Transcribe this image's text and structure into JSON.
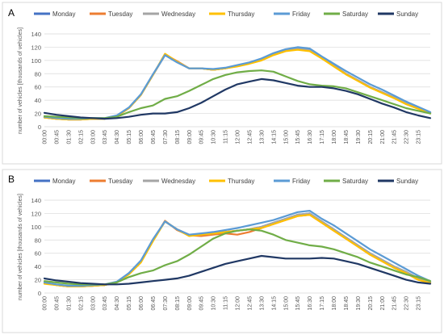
{
  "chart_data": [
    {
      "panel_label": "A",
      "type": "line",
      "title": "",
      "xlabel": "",
      "ylabel": "number of vehicles [thousands of vehicles]",
      "ylim": [
        0,
        140
      ],
      "yticks": [
        0,
        20,
        40,
        60,
        80,
        100,
        120,
        140
      ],
      "x_tick_labels": [
        "00:00",
        "00:45",
        "01:30",
        "02:15",
        "03:00",
        "03:45",
        "04:30",
        "05:15",
        "06:00",
        "06:45",
        "07:30",
        "08:15",
        "09:00",
        "09:45",
        "10:30",
        "11:15",
        "12:00",
        "12:45",
        "13:30",
        "14:15",
        "15:00",
        "15:45",
        "16:30",
        "17:15",
        "18:00",
        "18:45",
        "19:30",
        "20:15",
        "21:00",
        "21:45",
        "22:30",
        "23:15"
      ],
      "grid": true,
      "legend": "top",
      "x": [
        "00:00",
        "00:45",
        "01:30",
        "02:15",
        "03:00",
        "03:45",
        "04:30",
        "05:15",
        "06:00",
        "06:45",
        "07:30",
        "08:15",
        "09:00",
        "09:45",
        "10:30",
        "11:15",
        "12:00",
        "12:45",
        "13:30",
        "14:15",
        "15:00",
        "15:45",
        "16:30",
        "17:15",
        "18:00",
        "18:45",
        "19:30",
        "20:15",
        "21:00",
        "21:45",
        "22:30",
        "23:15",
        "24:00"
      ],
      "series": [
        {
          "name": "Monday",
          "color": "#4472C4",
          "values": [
            14,
            12,
            11,
            11,
            12,
            12,
            16,
            28,
            48,
            78,
            108,
            98,
            88,
            88,
            86,
            88,
            92,
            96,
            102,
            110,
            116,
            118,
            116,
            104,
            92,
            80,
            70,
            60,
            52,
            44,
            35,
            28,
            21
          ]
        },
        {
          "name": "Tuesday",
          "color": "#ED7D31",
          "values": [
            14,
            12,
            11,
            11,
            12,
            12,
            16,
            28,
            48,
            78,
            109,
            99,
            88,
            88,
            86,
            88,
            92,
            96,
            102,
            110,
            116,
            118,
            116,
            104,
            92,
            80,
            70,
            60,
            52,
            44,
            35,
            28,
            21
          ]
        },
        {
          "name": "Wednesday",
          "color": "#A5A5A5",
          "values": [
            14,
            12,
            11,
            11,
            12,
            12,
            16,
            28,
            48,
            78,
            108,
            98,
            88,
            88,
            86,
            88,
            92,
            96,
            102,
            110,
            116,
            118,
            116,
            104,
            92,
            80,
            70,
            60,
            52,
            44,
            35,
            28,
            21
          ]
        },
        {
          "name": "Thursday",
          "color": "#FFC000",
          "values": [
            14,
            12,
            11,
            11,
            12,
            12,
            16,
            28,
            48,
            78,
            110,
            98,
            88,
            88,
            86,
            88,
            91,
            95,
            100,
            108,
            114,
            116,
            114,
            103,
            91,
            79,
            69,
            59,
            51,
            43,
            34,
            27,
            20
          ]
        },
        {
          "name": "Friday",
          "color": "#5B9BD5",
          "values": [
            15,
            13,
            12,
            12,
            13,
            13,
            17,
            29,
            49,
            79,
            108,
            97,
            88,
            88,
            87,
            89,
            93,
            97,
            103,
            111,
            117,
            120,
            118,
            106,
            95,
            84,
            74,
            64,
            56,
            47,
            38,
            30,
            22
          ]
        },
        {
          "name": "Saturday",
          "color": "#70AD47",
          "values": [
            16,
            15,
            14,
            13,
            13,
            13,
            15,
            22,
            28,
            32,
            42,
            46,
            54,
            63,
            72,
            78,
            82,
            84,
            85,
            83,
            76,
            69,
            64,
            62,
            61,
            58,
            52,
            46,
            40,
            34,
            28,
            24,
            20
          ]
        },
        {
          "name": "Sunday",
          "color": "#203864",
          "values": [
            21,
            18,
            16,
            14,
            13,
            12,
            13,
            15,
            18,
            20,
            20,
            22,
            28,
            36,
            46,
            56,
            64,
            68,
            72,
            70,
            66,
            62,
            60,
            60,
            58,
            54,
            49,
            42,
            35,
            29,
            22,
            17,
            13
          ]
        }
      ]
    },
    {
      "panel_label": "B",
      "type": "line",
      "title": "",
      "xlabel": "",
      "ylabel": "number of vehicles [thousands of vehicles]",
      "ylim": [
        0,
        140
      ],
      "yticks": [
        0,
        20,
        40,
        60,
        80,
        100,
        120,
        140
      ],
      "x_tick_labels": [
        "00:00",
        "00:45",
        "01:30",
        "02:15",
        "03:00",
        "03:45",
        "04:30",
        "05:15",
        "06:00",
        "06:45",
        "07:30",
        "08:15",
        "09:00",
        "09:45",
        "10:30",
        "11:15",
        "12:00",
        "12:45",
        "13:30",
        "14:15",
        "15:00",
        "15:45",
        "16:30",
        "17:15",
        "18:00",
        "18:45",
        "19:30",
        "20:15",
        "21:00",
        "21:45",
        "22:30",
        "23:15"
      ],
      "grid": true,
      "legend": "top",
      "x": [
        "00:00",
        "00:45",
        "01:30",
        "02:15",
        "03:00",
        "03:45",
        "04:30",
        "05:15",
        "06:00",
        "06:45",
        "07:30",
        "08:15",
        "09:00",
        "09:45",
        "10:30",
        "11:15",
        "12:00",
        "12:45",
        "13:30",
        "14:15",
        "15:00",
        "15:45",
        "16:30",
        "17:15",
        "18:00",
        "18:45",
        "19:30",
        "20:15",
        "21:00",
        "21:45",
        "22:30",
        "23:15",
        "24:00"
      ],
      "series": [
        {
          "name": "Monday",
          "color": "#4472C4",
          "values": [
            15,
            12,
            10,
            10,
            11,
            12,
            16,
            30,
            48,
            80,
            108,
            96,
            88,
            88,
            90,
            92,
            94,
            96,
            100,
            106,
            112,
            118,
            120,
            108,
            96,
            84,
            72,
            60,
            50,
            40,
            32,
            22,
            16
          ]
        },
        {
          "name": "Tuesday",
          "color": "#ED7D31",
          "values": [
            15,
            12,
            10,
            10,
            11,
            12,
            16,
            29,
            47,
            79,
            109,
            95,
            87,
            86,
            88,
            90,
            88,
            92,
            98,
            104,
            110,
            116,
            118,
            106,
            94,
            82,
            70,
            58,
            48,
            38,
            30,
            20,
            15
          ]
        },
        {
          "name": "Wednesday",
          "color": "#A5A5A5",
          "values": [
            15,
            12,
            10,
            10,
            11,
            12,
            16,
            29,
            47,
            79,
            108,
            96,
            88,
            88,
            90,
            92,
            94,
            96,
            100,
            106,
            112,
            118,
            120,
            108,
            96,
            84,
            72,
            60,
            50,
            40,
            32,
            22,
            16
          ]
        },
        {
          "name": "Thursday",
          "color": "#FFC000",
          "values": [
            14,
            12,
            10,
            10,
            11,
            12,
            16,
            28,
            46,
            78,
            108,
            96,
            86,
            88,
            90,
            92,
            94,
            96,
            98,
            104,
            110,
            116,
            118,
            106,
            94,
            82,
            70,
            58,
            48,
            38,
            30,
            20,
            15
          ]
        },
        {
          "name": "Friday",
          "color": "#5B9BD5",
          "values": [
            16,
            13,
            11,
            11,
            12,
            13,
            17,
            30,
            49,
            81,
            108,
            96,
            88,
            90,
            92,
            95,
            98,
            102,
            106,
            110,
            116,
            122,
            124,
            112,
            102,
            90,
            78,
            66,
            56,
            46,
            36,
            26,
            18
          ]
        },
        {
          "name": "Saturday",
          "color": "#70AD47",
          "values": [
            18,
            16,
            14,
            13,
            13,
            13,
            16,
            24,
            30,
            34,
            42,
            48,
            58,
            70,
            82,
            90,
            94,
            96,
            94,
            88,
            80,
            76,
            72,
            70,
            66,
            60,
            54,
            46,
            40,
            34,
            28,
            24,
            18
          ]
        },
        {
          "name": "Sunday",
          "color": "#203864",
          "values": [
            22,
            19,
            17,
            15,
            14,
            13,
            13,
            14,
            16,
            18,
            20,
            22,
            26,
            32,
            38,
            44,
            48,
            52,
            56,
            54,
            52,
            52,
            52,
            53,
            52,
            48,
            44,
            38,
            32,
            26,
            20,
            16,
            14
          ]
        }
      ]
    }
  ]
}
